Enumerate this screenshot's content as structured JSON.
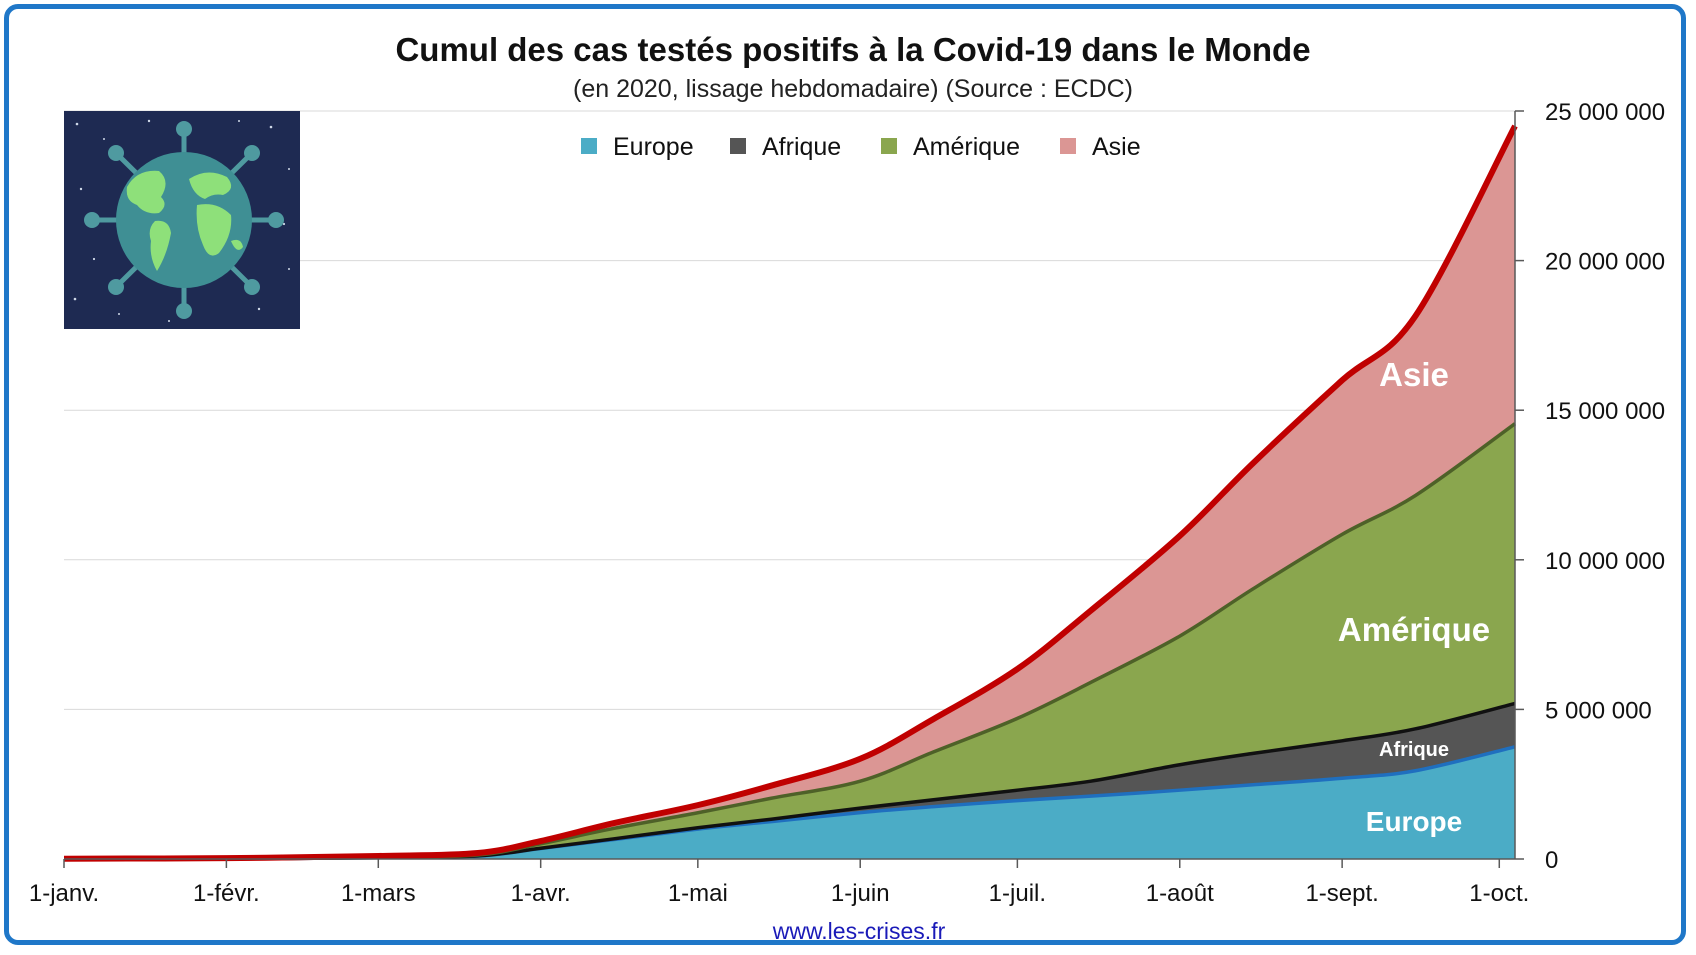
{
  "chart_data": {
    "type": "area",
    "stacked": true,
    "title": "Cumul des cas testés positifs à la Covid-19 dans le Monde",
    "subtitle": "(en 2020, lissage hebdomadaire) (Source : ECDC)",
    "xlabel": "",
    "ylabel": "",
    "x_tick_labels": [
      "1-janv.",
      "1-févr.",
      "1-mars",
      "1-avr.",
      "1-mai",
      "1-juin",
      "1-juil.",
      "1-août",
      "1-sept.",
      "1-oct."
    ],
    "x_tick_dates": [
      "2020-01-01",
      "2020-02-01",
      "2020-03-01",
      "2020-04-01",
      "2020-05-01",
      "2020-06-01",
      "2020-07-01",
      "2020-08-01",
      "2020-09-01",
      "2020-10-01"
    ],
    "x_range": [
      "2020-01-01",
      "2020-10-04"
    ],
    "y_axis_position": "right",
    "y_tick_labels": [
      "0",
      "5 000 000",
      "10 000 000",
      "15 000 000",
      "20 000 000",
      "25 000 000"
    ],
    "ylim": [
      0,
      25000000
    ],
    "grid": true,
    "legend_position": "top-center",
    "x": [
      "2020-01-01",
      "2020-02-01",
      "2020-03-01",
      "2020-03-20",
      "2020-04-01",
      "2020-04-15",
      "2020-05-01",
      "2020-05-15",
      "2020-06-01",
      "2020-06-15",
      "2020-07-01",
      "2020-07-15",
      "2020-08-01",
      "2020-08-15",
      "2020-09-01",
      "2020-09-15",
      "2020-10-04"
    ],
    "series": [
      {
        "name": "Europe",
        "color": "#4bacc6",
        "line_color": "#1f6fbf",
        "values": [
          0,
          5000,
          40000,
          100000,
          350000,
          650000,
          1000000,
          1250000,
          1550000,
          1750000,
          1950000,
          2100000,
          2300000,
          2480000,
          2700000,
          2950000,
          3750000
        ]
      },
      {
        "name": "Afrique",
        "color": "#555555",
        "line_color": "#111111",
        "values": [
          0,
          0,
          1000,
          3000,
          10000,
          25000,
          45000,
          80000,
          150000,
          230000,
          350000,
          500000,
          850000,
          1050000,
          1250000,
          1400000,
          1450000
        ]
      },
      {
        "name": "Amérique",
        "color": "#8aa64e",
        "line_color": "#4e6128",
        "values": [
          0,
          0,
          10000,
          30000,
          150000,
          350000,
          500000,
          700000,
          900000,
          1600000,
          2400000,
          3300000,
          4300000,
          5500000,
          6900000,
          7800000,
          9350000
        ]
      },
      {
        "name": "Asie",
        "color": "#db9694",
        "line_color": "#c00000",
        "values": [
          10000,
          25000,
          49000,
          67000,
          90000,
          175000,
          255000,
          420000,
          750000,
          1100000,
          1650000,
          2400000,
          3350000,
          4200000,
          5150000,
          6000000,
          9950000
        ]
      }
    ],
    "annotations": [
      "Europe",
      "Afrique",
      "Amérique",
      "Asie"
    ],
    "source_link": "www.les-crises.fr"
  }
}
